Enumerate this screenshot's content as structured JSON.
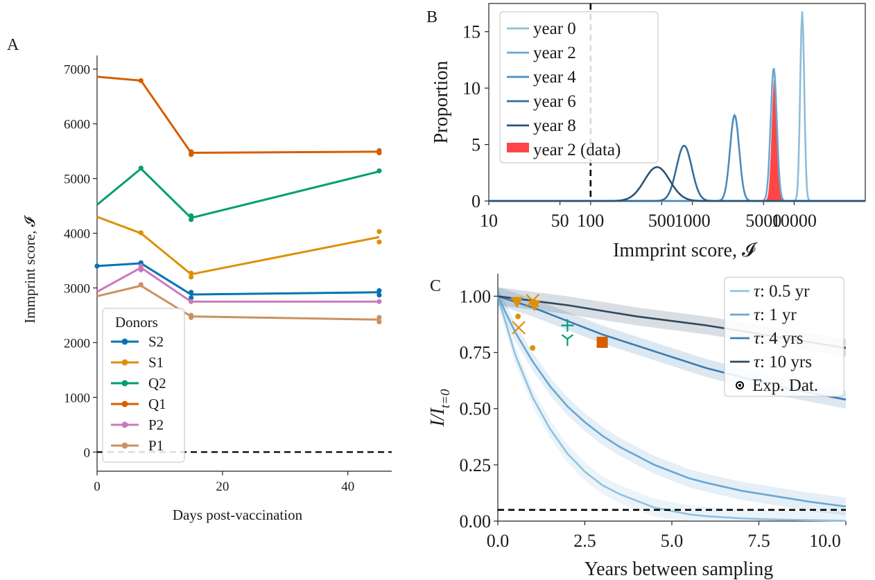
{
  "chart_data": [
    {
      "panel": "A",
      "type": "line",
      "xlabel": "Days post-vaccination",
      "ylabel": "Immprint score, 𝓘",
      "xlim": [
        0,
        47
      ],
      "ylim": [
        -350,
        7250
      ],
      "xticks": [
        0,
        20,
        40
      ],
      "yticks": [
        0,
        1000,
        2000,
        3000,
        4000,
        5000,
        6000,
        7000
      ],
      "reference_line_y": 0,
      "legend": {
        "title": "Donors",
        "placement": "bottom-left"
      },
      "series": [
        {
          "name": "S2",
          "color": "#0173b2",
          "x": [
            0,
            7,
            15,
            45
          ],
          "y": [
            3400,
            3450,
            2880,
            2920
          ],
          "extra_points": [
            [
              0,
              3400
            ],
            [
              7,
              3460
            ],
            [
              15,
              2920
            ],
            [
              15,
              2820
            ],
            [
              45,
              2950
            ],
            [
              45,
              2870
            ]
          ]
        },
        {
          "name": "S1",
          "color": "#de8f05",
          "x": [
            0,
            7,
            15,
            45
          ],
          "y": [
            4300,
            4000,
            3250,
            3930
          ],
          "extra_points": [
            [
              7,
              4010
            ],
            [
              15,
              3270
            ],
            [
              15,
              3200
            ],
            [
              45,
              4030
            ],
            [
              45,
              3840
            ]
          ]
        },
        {
          "name": "Q2",
          "color": "#029e73",
          "x": [
            0,
            7,
            15,
            45
          ],
          "y": [
            4520,
            5180,
            4280,
            5130
          ],
          "extra_points": [
            [
              7,
              5190
            ],
            [
              15,
              4320
            ],
            [
              15,
              4250
            ],
            [
              45,
              5140
            ]
          ]
        },
        {
          "name": "Q1",
          "color": "#d55e00",
          "x": [
            0,
            7,
            15,
            45
          ],
          "y": [
            6860,
            6790,
            5470,
            5490
          ],
          "extra_points": [
            [
              7,
              6790
            ],
            [
              15,
              5490
            ],
            [
              15,
              5440
            ],
            [
              45,
              5510
            ],
            [
              45,
              5470
            ]
          ]
        },
        {
          "name": "P2",
          "color": "#cc78bc",
          "x": [
            0,
            7,
            15,
            45
          ],
          "y": [
            2930,
            3370,
            2750,
            2750
          ],
          "extra_points": [
            [
              7,
              3400
            ],
            [
              7,
              3330
            ],
            [
              15,
              2750
            ],
            [
              45,
              2750
            ]
          ]
        },
        {
          "name": "P1",
          "color": "#ca9161",
          "x": [
            0,
            7,
            15,
            45
          ],
          "y": [
            2850,
            3040,
            2480,
            2420
          ],
          "extra_points": [
            [
              7,
              3060
            ],
            [
              15,
              2500
            ],
            [
              15,
              2460
            ],
            [
              45,
              2460
            ],
            [
              45,
              2380
            ]
          ]
        }
      ]
    },
    {
      "panel": "B",
      "type": "line",
      "xlabel": "Immprint score, 𝓘",
      "ylabel": "Proportion",
      "xscale": "log",
      "xlim": [
        10,
        50000
      ],
      "ylim": [
        0,
        17.5
      ],
      "xticks": [
        10,
        50,
        100,
        500,
        1000,
        5000,
        10000
      ],
      "xtick_labels": [
        "10",
        "50",
        "100",
        "500",
        "1000",
        "5000",
        "10000"
      ],
      "yticks": [
        0,
        5,
        10,
        15
      ],
      "reference_line_x": 100,
      "legend": {
        "placement": "upper-left"
      },
      "series": [
        {
          "name": "year 0",
          "color": "#8fbcd8",
          "peak_x": 12000,
          "peak_y": 16.8
        },
        {
          "name": "year 2",
          "color": "#6aa6d1",
          "peak_x": 6300,
          "peak_y": 11.8
        },
        {
          "name": "year 4",
          "color": "#4a8cc0",
          "peak_x": 2600,
          "peak_y": 7.6
        },
        {
          "name": "year 6",
          "color": "#346d9b",
          "peak_x": 830,
          "peak_y": 4.9
        },
        {
          "name": "year 8",
          "color": "#2d5272",
          "peak_x": 450,
          "peak_y": 3.0
        }
      ],
      "histogram": {
        "name": "year 2 (data)",
        "color": "#ff4545",
        "peak_x": 6400,
        "peak_y": 10.9
      }
    },
    {
      "panel": "C",
      "type": "line",
      "xlabel": "Years between sampling",
      "ylabel": "I/I_{t=0}",
      "xlim": [
        0,
        10
      ],
      "ylim": [
        0,
        1.1
      ],
      "xticks": [
        0,
        2.5,
        5,
        7.5,
        10
      ],
      "xtick_labels": [
        "0.0",
        "2.5",
        "5.0",
        "7.5",
        "10.0"
      ],
      "yticks": [
        0,
        0.25,
        0.5,
        0.75,
        1
      ],
      "ytick_labels": [
        "0.00",
        "0.25",
        "0.50",
        "0.75",
        "1.00"
      ],
      "reference_line_y": 0.05,
      "legend": {
        "placement": "upper-right"
      },
      "series": [
        {
          "name": "τ: 0.5 yr",
          "legend_text": "0.5 yr",
          "color": "#92c1e0",
          "x": [
            0,
            0.5,
            1,
            1.5,
            2,
            2.5,
            3,
            3.5,
            4,
            4.5,
            5,
            5.5,
            6,
            7,
            8,
            9,
            10
          ],
          "y": [
            1,
            0.74,
            0.55,
            0.41,
            0.3,
            0.22,
            0.16,
            0.12,
            0.09,
            0.06,
            0.045,
            0.03,
            0.022,
            0.012,
            0.007,
            0.004,
            0.002
          ]
        },
        {
          "name": "τ: 1 yr",
          "legend_text": "1 yr",
          "color": "#6aa6d1",
          "x": [
            0,
            0.5,
            1,
            1.5,
            2,
            2.5,
            3,
            3.5,
            4,
            4.5,
            5,
            5.5,
            6,
            7,
            8,
            9,
            10
          ],
          "y": [
            1,
            0.84,
            0.71,
            0.6,
            0.51,
            0.44,
            0.38,
            0.33,
            0.29,
            0.25,
            0.22,
            0.19,
            0.17,
            0.135,
            0.11,
            0.085,
            0.065
          ]
        },
        {
          "name": "τ: 4 yrs",
          "legend_text": "4 yrs",
          "color": "#3a7cb3",
          "x": [
            0,
            1,
            2,
            3,
            4,
            5,
            6,
            7,
            8,
            9,
            10
          ],
          "y": [
            1,
            0.95,
            0.89,
            0.83,
            0.78,
            0.73,
            0.68,
            0.64,
            0.6,
            0.57,
            0.54
          ]
        },
        {
          "name": "τ: 10 yrs",
          "legend_text": "10 yrs",
          "color": "#2d4860",
          "x": [
            0,
            2,
            4,
            6,
            8,
            10
          ],
          "y": [
            1,
            0.96,
            0.91,
            0.87,
            0.82,
            0.77
          ]
        }
      ],
      "experimental": {
        "name": "Exp. Dat.",
        "points": [
          {
            "x": 0.55,
            "y": 0.975,
            "marker": "triangle-down",
            "color": "#de8f05"
          },
          {
            "x": 0.58,
            "y": 0.91,
            "marker": "circle",
            "color": "#de8f05"
          },
          {
            "x": 0.6,
            "y": 0.86,
            "marker": "x",
            "color": "#de8f05"
          },
          {
            "x": 1.0,
            "y": 0.98,
            "marker": "x",
            "color": "#de8f05"
          },
          {
            "x": 1.05,
            "y": 0.96,
            "marker": "triangle-down",
            "color": "#de8f05"
          },
          {
            "x": 1.0,
            "y": 0.77,
            "marker": "circle",
            "color": "#de8f05"
          },
          {
            "x": 2.0,
            "y": 0.87,
            "marker": "plus",
            "color": "#029e73"
          },
          {
            "x": 2.0,
            "y": 0.81,
            "marker": "tri-down",
            "color": "#029e73"
          },
          {
            "x": 3.0,
            "y": 0.795,
            "marker": "square",
            "color": "#d55e00"
          }
        ]
      }
    }
  ]
}
